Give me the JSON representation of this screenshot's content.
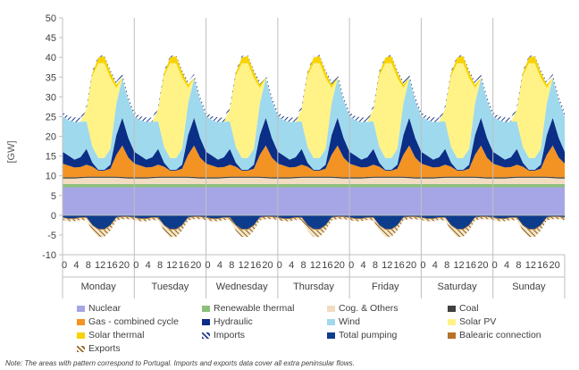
{
  "colors": {
    "nuclear": "#a6a6e6",
    "renewable_thermal": "#8dc07b",
    "cog_others": "#f2ddc2",
    "coal": "#404040",
    "gas": "#f39323",
    "hydraulic": "#0b2e86",
    "wind": "#9fd9ee",
    "solar_pv": "#fff387",
    "solar_thermal": "#f8d300",
    "imports": "#1f3d8c",
    "total_pumping": "#0e3c8c",
    "balearic": "#b7722a",
    "exports": "#9a6a2a"
  },
  "legend": [
    {
      "key": "nuclear",
      "label": "Nuclear",
      "icon": "solid-swatch"
    },
    {
      "key": "renewable_thermal",
      "label": "Renewable thermal",
      "icon": "solid-swatch"
    },
    {
      "key": "cog_others",
      "label": "Cog. & Others",
      "icon": "solid-swatch"
    },
    {
      "key": "coal",
      "label": "Coal",
      "icon": "solid-swatch"
    },
    {
      "key": "gas",
      "label": "Gas - combined cycle",
      "icon": "solid-swatch"
    },
    {
      "key": "hydraulic",
      "label": "Hydraulic",
      "icon": "solid-swatch"
    },
    {
      "key": "wind",
      "label": "Wind",
      "icon": "solid-swatch"
    },
    {
      "key": "solar_pv",
      "label": "Solar PV",
      "icon": "solid-swatch"
    },
    {
      "key": "solar_thermal",
      "label": "Solar thermal",
      "icon": "solid-swatch"
    },
    {
      "key": "imports",
      "label": "Imports",
      "icon": "hatched-swatch"
    },
    {
      "key": "total_pumping",
      "label": "Total pumping",
      "icon": "solid-swatch"
    },
    {
      "key": "balearic",
      "label": "Balearic connection",
      "icon": "solid-swatch"
    },
    {
      "key": "exports",
      "label": "Exports",
      "icon": "hatched-swatch"
    }
  ],
  "note": "Note: The areas with pattern correspond to Portugal. Imports and exports data cover all extra peninsular flows.",
  "chart_data": {
    "type": "area",
    "title": "",
    "ylabel": "[GW]",
    "ylim": [
      -10,
      50
    ],
    "yticks": [
      -10,
      -5,
      0,
      5,
      10,
      15,
      20,
      25,
      30,
      35,
      40,
      45,
      50
    ],
    "grid": false,
    "legend_position": "bottom",
    "days": [
      "Monday",
      "Tuesday",
      "Wednesday",
      "Thursday",
      "Friday",
      "Saturday",
      "Sunday"
    ],
    "hour_tick_labels": [
      "0",
      "4",
      "8",
      "12",
      "16",
      "20"
    ],
    "series_profile_per_day": {
      "hours": [
        0,
        2,
        4,
        6,
        8,
        10,
        12,
        14,
        16,
        18,
        20,
        22,
        24
      ],
      "nuclear": [
        7.1,
        7.1,
        7.1,
        7.1,
        7.1,
        7.1,
        7.1,
        7.1,
        7.1,
        7.1,
        7.1,
        7.1,
        7.1
      ],
      "renewable_thermal": [
        0.8,
        0.8,
        0.8,
        0.8,
        0.8,
        0.8,
        0.8,
        0.8,
        0.8,
        0.8,
        0.8,
        0.8,
        0.8
      ],
      "cog_others": [
        1.4,
        1.4,
        1.4,
        1.5,
        1.6,
        1.6,
        1.6,
        1.6,
        1.6,
        1.6,
        1.5,
        1.4,
        1.4
      ],
      "coal": [
        0.3,
        0.3,
        0.3,
        0.3,
        0.3,
        0.3,
        0.3,
        0.3,
        0.3,
        0.3,
        0.3,
        0.3,
        0.3
      ],
      "gas": [
        3.5,
        3.0,
        2.5,
        2.5,
        3.0,
        2.5,
        1.5,
        1.5,
        2.0,
        5.5,
        8.0,
        5.0,
        3.5
      ],
      "hydraulic": [
        3.0,
        2.5,
        2.0,
        2.5,
        4.0,
        1.0,
        0.2,
        0.2,
        1.0,
        5.0,
        7.0,
        5.0,
        3.0
      ],
      "wind": [
        9.0,
        9.0,
        9.5,
        9.0,
        7.0,
        4.0,
        3.0,
        3.0,
        4.0,
        8.0,
        10.0,
        9.5,
        9.0
      ],
      "solar_pv": [
        0.0,
        0.0,
        0.0,
        0.0,
        3.0,
        18.0,
        24.0,
        24.0,
        18.0,
        4.0,
        0.0,
        0.0,
        0.0
      ],
      "solar_thermal": [
        0.0,
        0.0,
        0.0,
        0.0,
        0.1,
        0.8,
        1.5,
        1.8,
        1.5,
        0.8,
        0.1,
        0.0,
        0.0
      ],
      "imports": [
        1.0,
        1.0,
        1.2,
        1.0,
        0.8,
        0.5,
        0.3,
        0.3,
        0.5,
        0.8,
        1.0,
        1.0,
        1.0
      ],
      "total_pumping": [
        -0.5,
        -0.8,
        -0.8,
        -0.5,
        -0.5,
        -2.5,
        -3.5,
        -3.5,
        -2.5,
        -0.5,
        -0.3,
        -0.3,
        -0.5
      ],
      "balearic": [
        -0.2,
        -0.2,
        -0.2,
        -0.2,
        -0.2,
        -0.2,
        -0.2,
        -0.2,
        -0.2,
        -0.2,
        -0.2,
        -0.2,
        -0.2
      ],
      "exports": [
        -0.5,
        -0.5,
        -0.5,
        -0.5,
        -0.6,
        -1.2,
        -1.8,
        -1.8,
        -1.2,
        -0.6,
        -0.5,
        -0.5,
        -0.5
      ]
    }
  }
}
